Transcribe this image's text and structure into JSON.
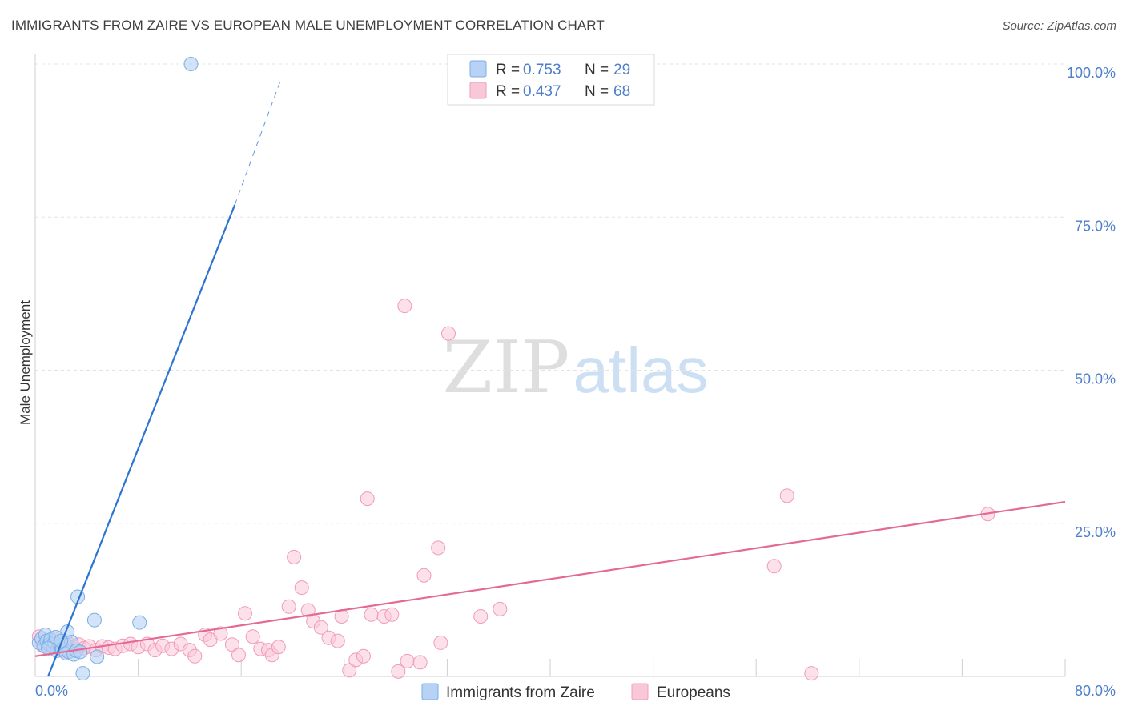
{
  "chart_data": {
    "type": "scatter",
    "title": "IMMIGRANTS FROM ZAIRE VS EUROPEAN MALE UNEMPLOYMENT CORRELATION CHART",
    "source": "Source: ZipAtlas.com",
    "ylabel": "Male Unemployment",
    "xlim": [
      0,
      80
    ],
    "ylim": [
      0,
      100
    ],
    "x_tick_labels": [
      "0.0%",
      "80.0%"
    ],
    "y_ticks": [
      25,
      50,
      75,
      100
    ],
    "y_tick_labels": [
      "25.0%",
      "50.0%",
      "75.0%",
      "100.0%"
    ],
    "grid": true,
    "legend_position": "top-center",
    "watermark": "ZIPatlas",
    "colors": {
      "zaire": "#7aaee8",
      "zaire_fill": "#b7d2f4",
      "zaire_line": "#2c74d2",
      "europeans": "#f19bb8",
      "europeans_fill": "#f9c8d8",
      "europeans_line": "#e46a96",
      "tick_label": "#4d7fcb"
    },
    "legend": [
      {
        "r_label": "R =",
        "r_value": "0.753",
        "n_label": "N =",
        "n_value": "29"
      },
      {
        "r_label": "R =",
        "r_value": "0.437",
        "n_label": "N =",
        "n_value": "68"
      }
    ],
    "series": [
      {
        "name": "Immigrants from Zaire",
        "regression": {
          "x_start": 1.0,
          "y_start": 0.0,
          "x_end": 15.5,
          "y_end": 77.0,
          "dash_x_end": 19.0,
          "dash_y_end": 97.0
        },
        "points": [
          [
            0.3,
            5.5
          ],
          [
            0.5,
            6.2
          ],
          [
            0.7,
            5.0
          ],
          [
            0.8,
            6.8
          ],
          [
            0.9,
            5.8
          ],
          [
            1.1,
            5.2
          ],
          [
            1.2,
            6.0
          ],
          [
            1.4,
            4.8
          ],
          [
            1.5,
            5.5
          ],
          [
            1.7,
            4.2
          ],
          [
            1.9,
            5.0
          ],
          [
            2.1,
            4.5
          ],
          [
            2.3,
            5.3
          ],
          [
            2.4,
            3.8
          ],
          [
            2.5,
            7.3
          ],
          [
            2.6,
            4.0
          ],
          [
            2.8,
            5.6
          ],
          [
            3.0,
            3.6
          ],
          [
            3.2,
            4.2
          ],
          [
            3.3,
            13.0
          ],
          [
            3.5,
            4.0
          ],
          [
            3.7,
            0.5
          ],
          [
            4.6,
            9.2
          ],
          [
            4.8,
            3.2
          ],
          [
            8.1,
            8.8
          ],
          [
            12.1,
            100.0
          ],
          [
            1.0,
            4.6
          ],
          [
            1.6,
            6.4
          ],
          [
            2.0,
            5.8
          ]
        ]
      },
      {
        "name": "Europeans",
        "regression": {
          "x_start": 0.0,
          "y_start": 3.3,
          "x_end": 80.0,
          "y_end": 28.5
        },
        "points": [
          [
            0.3,
            6.5
          ],
          [
            0.6,
            5.0
          ],
          [
            0.9,
            5.8
          ],
          [
            1.1,
            4.6
          ],
          [
            1.4,
            6.2
          ],
          [
            1.7,
            5.0
          ],
          [
            2.0,
            5.6
          ],
          [
            2.3,
            4.2
          ],
          [
            2.6,
            5.3
          ],
          [
            3.0,
            4.8
          ],
          [
            3.4,
            5.2
          ],
          [
            3.8,
            4.6
          ],
          [
            4.2,
            4.9
          ],
          [
            4.7,
            4.3
          ],
          [
            5.2,
            4.9
          ],
          [
            5.7,
            4.7
          ],
          [
            6.2,
            4.5
          ],
          [
            6.8,
            5.0
          ],
          [
            7.4,
            5.3
          ],
          [
            8.0,
            4.8
          ],
          [
            8.7,
            5.3
          ],
          [
            9.3,
            4.3
          ],
          [
            9.9,
            5.0
          ],
          [
            10.6,
            4.5
          ],
          [
            11.3,
            5.3
          ],
          [
            12.0,
            4.3
          ],
          [
            12.4,
            3.3
          ],
          [
            13.2,
            6.8
          ],
          [
            13.6,
            6.0
          ],
          [
            14.4,
            7.0
          ],
          [
            15.3,
            5.2
          ],
          [
            15.8,
            3.5
          ],
          [
            16.3,
            10.3
          ],
          [
            16.9,
            6.5
          ],
          [
            17.5,
            4.5
          ],
          [
            18.1,
            4.3
          ],
          [
            18.4,
            3.5
          ],
          [
            18.9,
            4.8
          ],
          [
            19.7,
            11.4
          ],
          [
            20.1,
            19.5
          ],
          [
            20.7,
            14.5
          ],
          [
            21.2,
            10.8
          ],
          [
            21.6,
            9.0
          ],
          [
            22.2,
            8.0
          ],
          [
            22.8,
            6.3
          ],
          [
            23.5,
            5.8
          ],
          [
            23.8,
            9.8
          ],
          [
            24.4,
            1.0
          ],
          [
            24.9,
            2.7
          ],
          [
            25.5,
            3.3
          ],
          [
            25.8,
            29.0
          ],
          [
            26.1,
            10.1
          ],
          [
            27.1,
            9.8
          ],
          [
            27.7,
            10.1
          ],
          [
            28.2,
            0.8
          ],
          [
            28.9,
            2.5
          ],
          [
            28.7,
            60.5
          ],
          [
            29.9,
            2.3
          ],
          [
            30.2,
            16.5
          ],
          [
            31.3,
            21.0
          ],
          [
            31.5,
            5.5
          ],
          [
            32.1,
            56.0
          ],
          [
            34.6,
            9.8
          ],
          [
            36.1,
            11.0
          ],
          [
            57.4,
            18.0
          ],
          [
            58.4,
            29.5
          ],
          [
            60.3,
            0.5
          ],
          [
            74.0,
            26.5
          ]
        ]
      }
    ]
  }
}
